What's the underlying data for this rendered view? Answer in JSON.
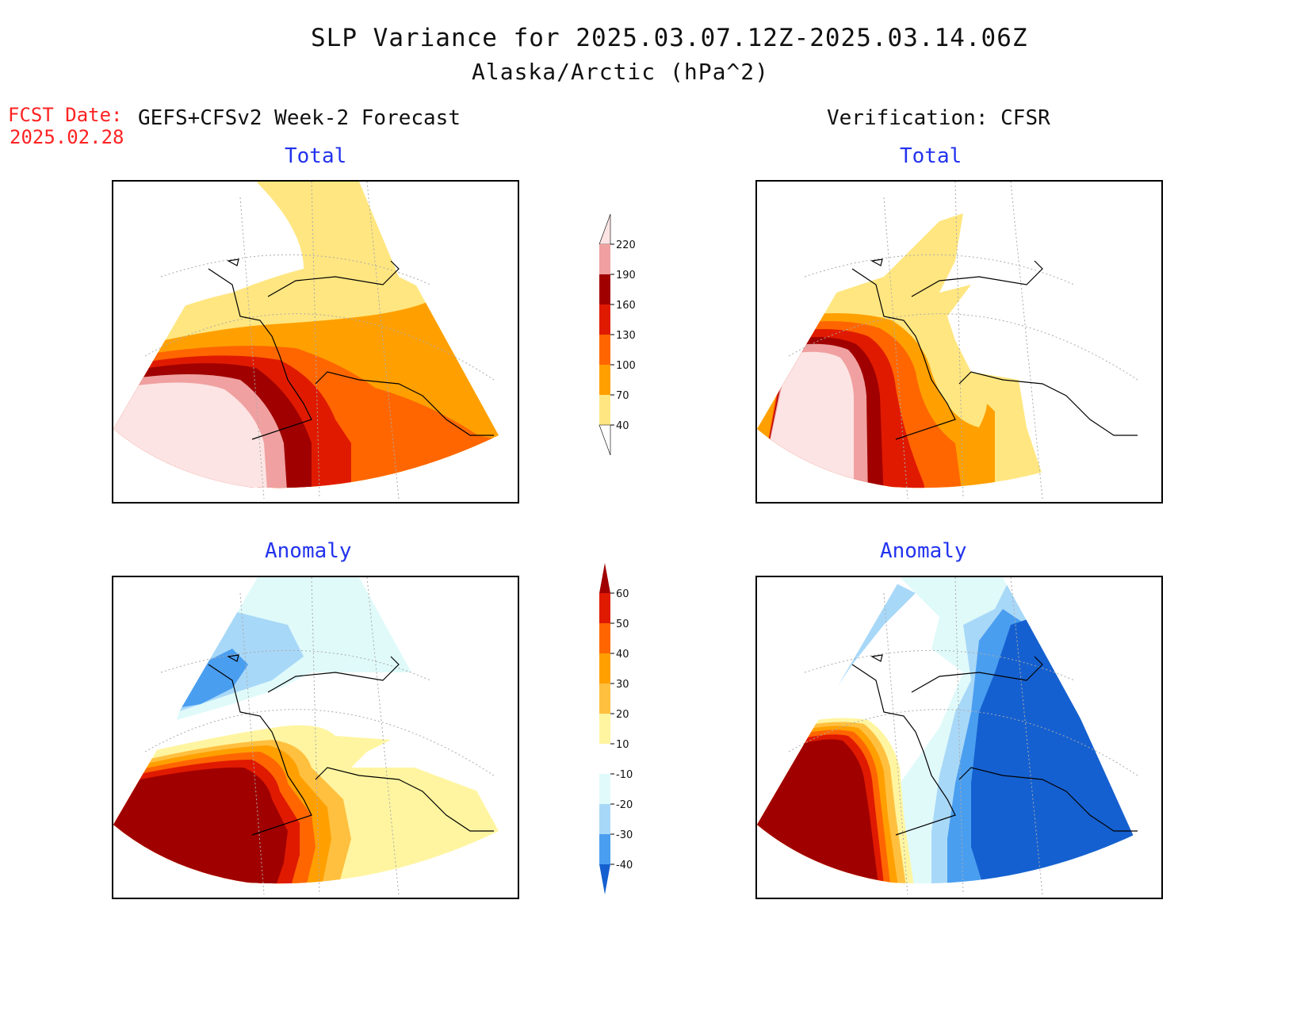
{
  "header": {
    "title": "SLP Variance for 2025.03.07.12Z-2025.03.14.06Z",
    "subtitle": "Alaska/Arctic (hPa^2)",
    "fcst_label": "FCST Date:",
    "fcst_date": "2025.02.28",
    "left_header": "GEFS+CFSv2 Week-2 Forecast",
    "right_header": "Verification: CFSR"
  },
  "panels": {
    "fcst_total": "Total",
    "verif_total": "Total",
    "fcst_anomaly": "Anomaly",
    "verif_anomaly": "Anomaly"
  },
  "colorbars": {
    "total": {
      "levels": [
        "220",
        "190",
        "160",
        "130",
        "100",
        "70",
        "40"
      ],
      "colors": [
        "#fde4e4",
        "#f0a0a0",
        "#a00000",
        "#e01a00",
        "#ff6600",
        "#ffa000",
        "#ffe680"
      ]
    },
    "anomaly": {
      "levels": [
        "60",
        "50",
        "40",
        "30",
        "20",
        "10",
        "-10",
        "-20",
        "-30",
        "-40"
      ],
      "colors": [
        "#a00000",
        "#e01a00",
        "#ff6600",
        "#ffa000",
        "#ffc040",
        "#fff5a0",
        "#ffffff",
        "#e0fafa",
        "#a8d8f8",
        "#4a9ef0",
        "#1560d0"
      ]
    }
  }
}
